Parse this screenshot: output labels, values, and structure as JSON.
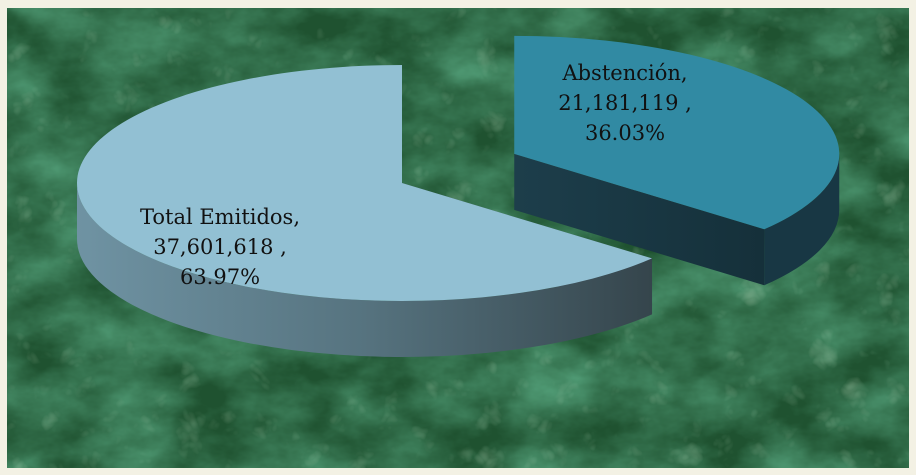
{
  "chart_data": {
    "type": "pie",
    "title": "",
    "style": "3d-exploded",
    "slices": [
      {
        "category": "Total Emitidos,",
        "value": "37,601,618 ,",
        "percent": "63.97%",
        "pct": 63.97,
        "color": "#92c0d3"
      },
      {
        "category": "Abstención,",
        "value": "21,181,119 ,",
        "percent": "36.03%",
        "pct": 36.03,
        "color": "#318aa3"
      }
    ],
    "legend": "none",
    "background": "green marble texture"
  }
}
